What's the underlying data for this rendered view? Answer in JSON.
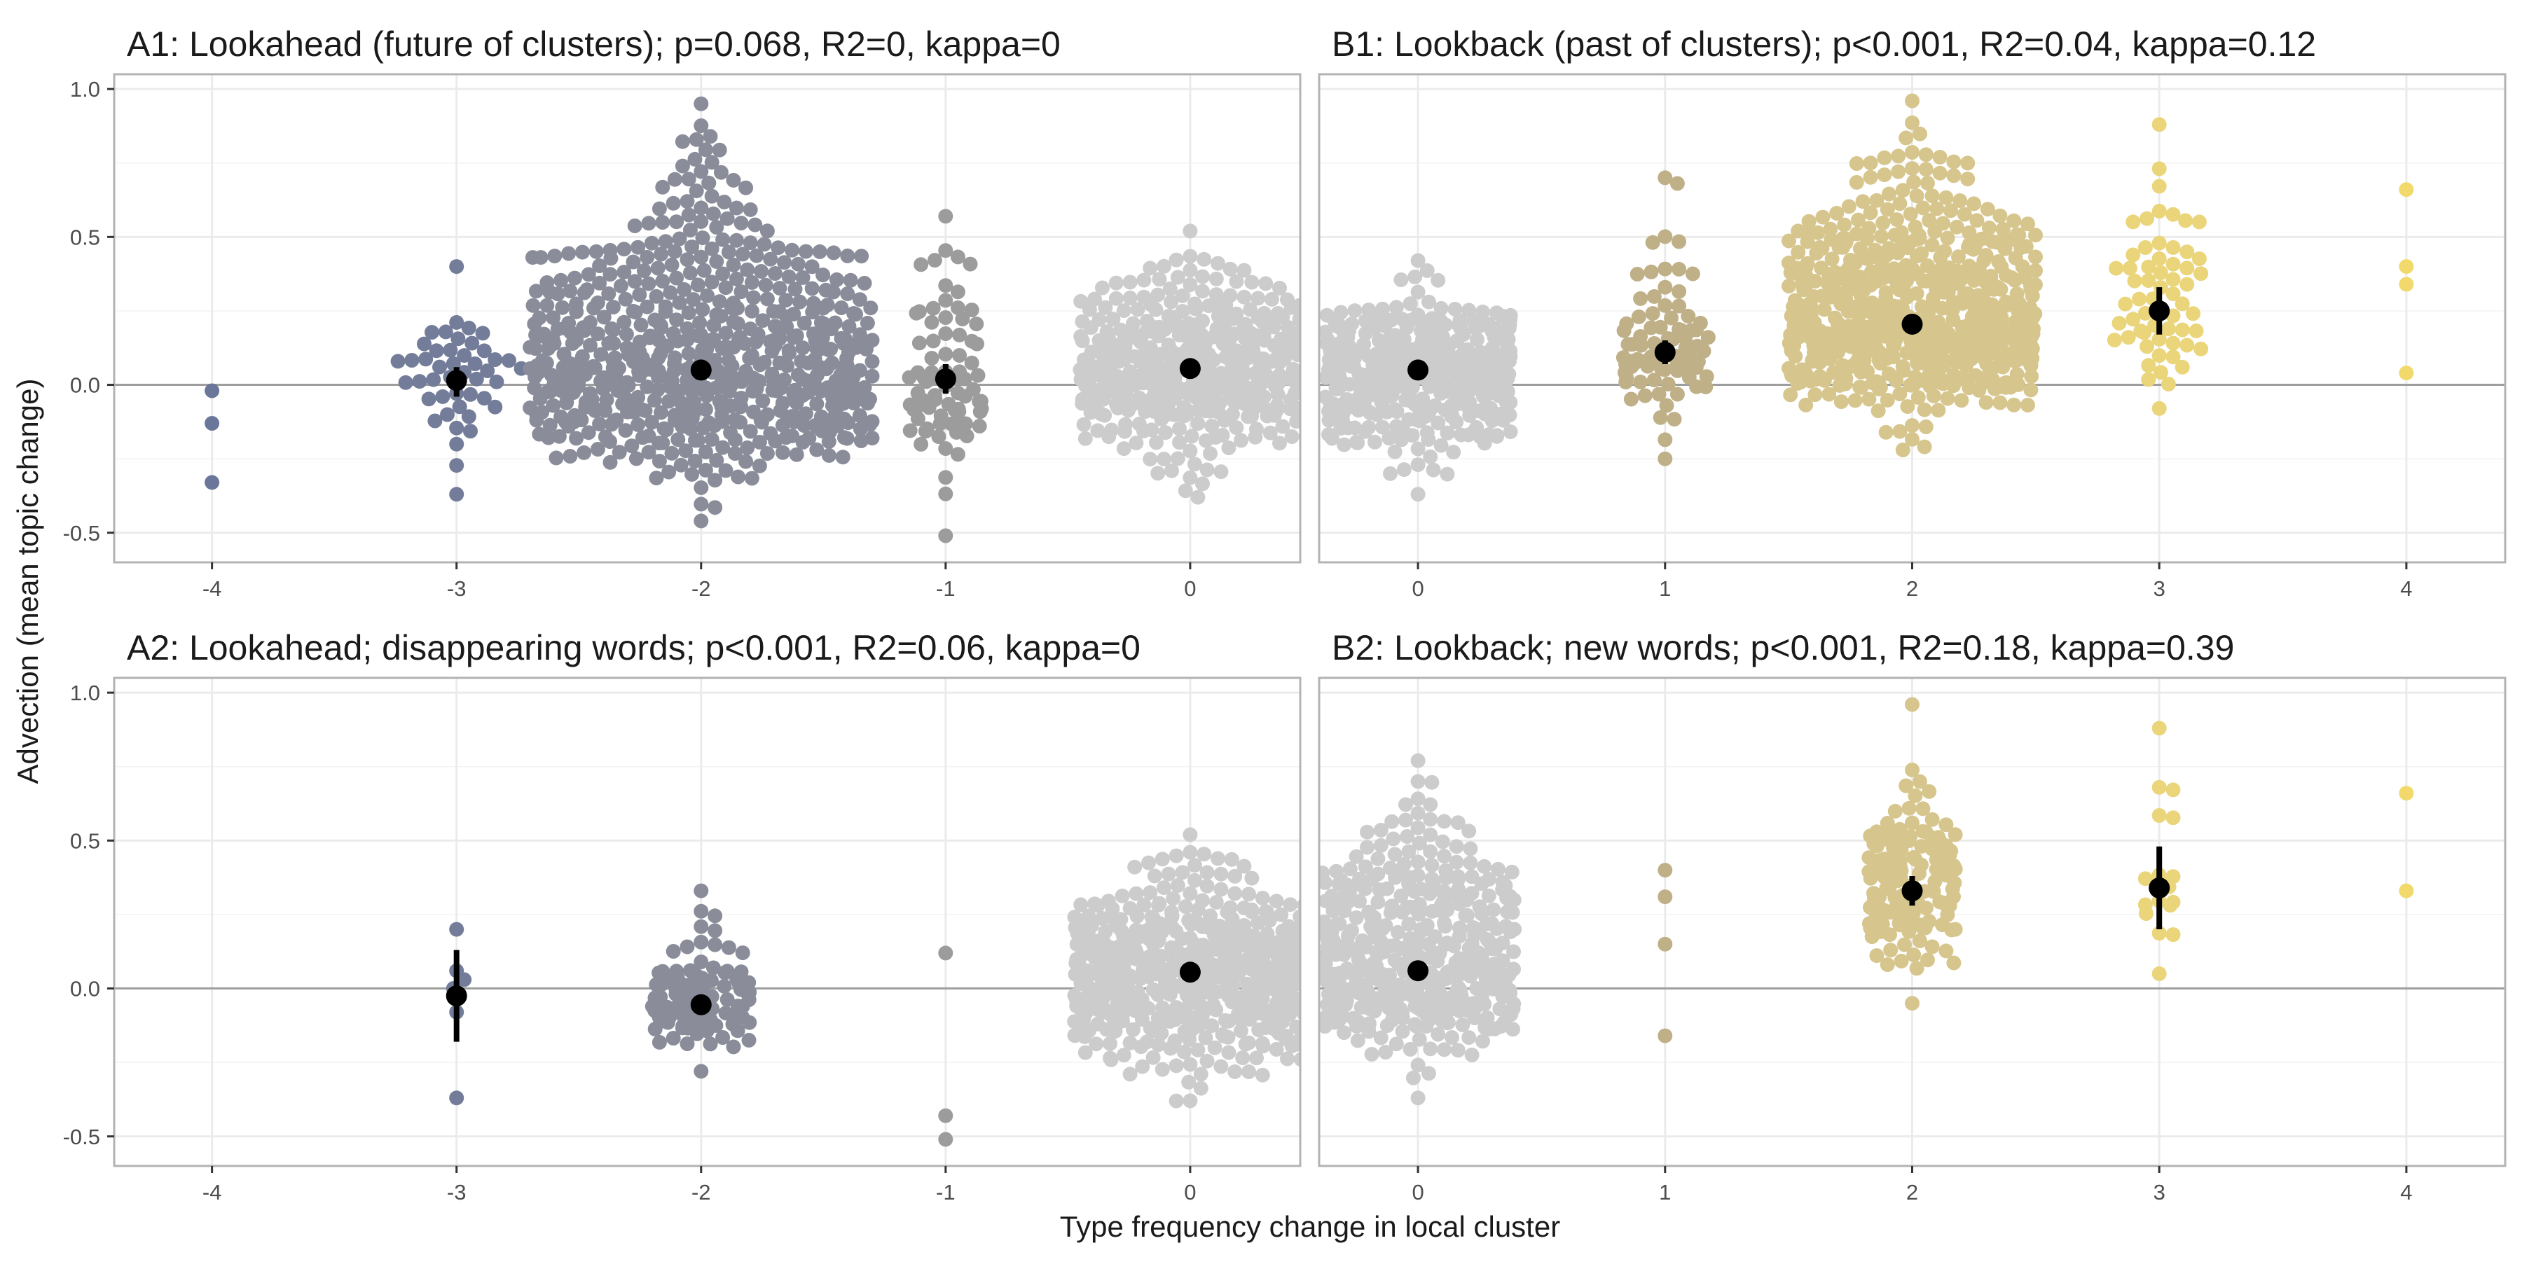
{
  "chart_data": {
    "type": "scatter",
    "subtype": "beeswarm with mean and 95% CI",
    "xlabel": "Type frequency change in local cluster",
    "ylabel": "Advection (mean topic change)",
    "ylim": [
      -0.6,
      1.05
    ],
    "yticks": [
      -0.5,
      0.0,
      0.5,
      1.0
    ],
    "ytick_labels": [
      "-0.5",
      "0.0",
      "0.5",
      "1.0"
    ],
    "grid": true,
    "legend": "none",
    "colors": {
      "-4": "#6b779a",
      "-3": "#737d99",
      "-2": "#8a8c99",
      "-1": "#9c9c9c",
      "0": "#cccccc",
      "1": "#bfb088",
      "2": "#d6c68d",
      "3": "#ead57a",
      "4": "#f2d96b",
      "summary": "#000000",
      "reference_line": "#9e9e9e",
      "grid": "#ebebeb",
      "panel_border": "#b3b3b3"
    },
    "panels": [
      {
        "id": "A1",
        "title": "A1: Lookahead (future of clusters);  p=0.068, R2=0, kappa=0",
        "xlim": [
          -4.4,
          0.45
        ],
        "xticks": [
          -4,
          -3,
          -2,
          -1,
          0
        ],
        "xtick_labels": [
          "-4",
          "-3",
          "-2",
          "-1",
          "0"
        ],
        "groups": [
          {
            "x": -4,
            "n": 3,
            "mean": null,
            "min": -0.33,
            "max": -0.02,
            "spread": 0.05,
            "values": [
              -0.02,
              -0.13,
              -0.33
            ]
          },
          {
            "x": -3,
            "n": 45,
            "mean": 0.015,
            "ci": [
              -0.04,
              0.06
            ],
            "min": -0.37,
            "max": 0.4,
            "spread": 0.55
          },
          {
            "x": -2,
            "n": 650,
            "mean": 0.05,
            "ci": [
              0.035,
              0.065
            ],
            "min": -0.46,
            "max": 0.95,
            "spread": 1.4
          },
          {
            "x": -1,
            "n": 80,
            "mean": 0.02,
            "ci": [
              -0.03,
              0.07
            ],
            "min": -0.51,
            "max": 0.57,
            "spread": 0.3
          },
          {
            "x": 0,
            "n": 450,
            "mean": 0.055,
            "ci": [
              0.04,
              0.07
            ],
            "min": -0.38,
            "max": 0.52,
            "spread": 0.9
          }
        ]
      },
      {
        "id": "B1",
        "title": "B1: Lookback (past of clusters);  p<0.001, R2=0.04, kappa=0.12",
        "xlim": [
          -0.4,
          4.4
        ],
        "xticks": [
          0,
          1,
          2,
          3,
          4
        ],
        "xtick_labels": [
          "0",
          "1",
          "2",
          "3",
          "4"
        ],
        "groups": [
          {
            "x": 0,
            "n": 450,
            "mean": 0.05,
            "ci": [
              0.035,
              0.065
            ],
            "min": -0.37,
            "max": 0.42,
            "spread": 0.75
          },
          {
            "x": 1,
            "n": 90,
            "mean": 0.11,
            "ci": [
              0.07,
              0.15
            ],
            "min": -0.25,
            "max": 0.7,
            "spread": 0.35
          },
          {
            "x": 2,
            "n": 700,
            "mean": 0.205,
            "ci": [
              0.19,
              0.22
            ],
            "min": -0.22,
            "max": 0.96,
            "spread": 1.0
          },
          {
            "x": 3,
            "n": 60,
            "mean": 0.25,
            "ci": [
              0.17,
              0.33
            ],
            "min": -0.08,
            "max": 0.88,
            "spread": 0.4
          },
          {
            "x": 4,
            "n": 4,
            "mean": null,
            "min": 0.04,
            "max": 0.66,
            "spread": 0.05,
            "values": [
              0.66,
              0.4,
              0.34,
              0.04
            ]
          }
        ]
      },
      {
        "id": "A2",
        "title": "A2: Lookahead; disappearing words;  p<0.001, R2=0.06, kappa=0",
        "xlim": [
          -4.4,
          0.45
        ],
        "xticks": [
          -4,
          -3,
          -2,
          -1,
          0
        ],
        "xtick_labels": [
          "-4",
          "-3",
          "-2",
          "-1",
          "0"
        ],
        "groups": [
          {
            "x": -3,
            "n": 6,
            "mean": -0.025,
            "ci": [
              -0.18,
              0.13
            ],
            "min": -0.37,
            "max": 0.2,
            "spread": 0.08,
            "values": [
              0.2,
              0.06,
              0.03,
              0.0,
              -0.08,
              -0.37
            ]
          },
          {
            "x": -2,
            "n": 110,
            "mean": -0.055,
            "ci": [
              -0.08,
              -0.03
            ],
            "min": -0.28,
            "max": 0.33,
            "spread": 0.4
          },
          {
            "x": -1,
            "n": 3,
            "mean": null,
            "min": -0.51,
            "max": 0.12,
            "spread": 0.02,
            "values": [
              0.12,
              -0.43,
              -0.51
            ]
          },
          {
            "x": 0,
            "n": 600,
            "mean": 0.055,
            "ci": [
              0.04,
              0.07
            ],
            "min": -0.38,
            "max": 0.52,
            "spread": 0.95
          }
        ]
      },
      {
        "id": "B2",
        "title": "B2: Lookback; new words;  p<0.001, R2=0.18, kappa=0.39",
        "xlim": [
          -0.4,
          4.4
        ],
        "xticks": [
          0,
          1,
          2,
          3,
          4
        ],
        "xtick_labels": [
          "0",
          "1",
          "2",
          "3",
          "4"
        ],
        "groups": [
          {
            "x": 0,
            "n": 450,
            "mean": 0.06,
            "ci": [
              0.045,
              0.075
            ],
            "min": -0.37,
            "max": 0.77,
            "spread": 0.78
          },
          {
            "x": 1,
            "n": 4,
            "mean": null,
            "min": -0.16,
            "max": 0.4,
            "spread": 0.02,
            "values": [
              0.4,
              0.31,
              0.15,
              -0.16
            ]
          },
          {
            "x": 2,
            "n": 160,
            "mean": 0.33,
            "ci": [
              0.28,
              0.38
            ],
            "min": -0.05,
            "max": 0.96,
            "spread": 0.35
          },
          {
            "x": 3,
            "n": 18,
            "mean": 0.34,
            "ci": [
              0.2,
              0.48
            ],
            "min": 0.05,
            "max": 0.88,
            "spread": 0.12
          },
          {
            "x": 4,
            "n": 2,
            "mean": null,
            "min": 0.33,
            "max": 0.66,
            "spread": 0.02,
            "values": [
              0.66,
              0.33
            ]
          }
        ]
      }
    ]
  }
}
